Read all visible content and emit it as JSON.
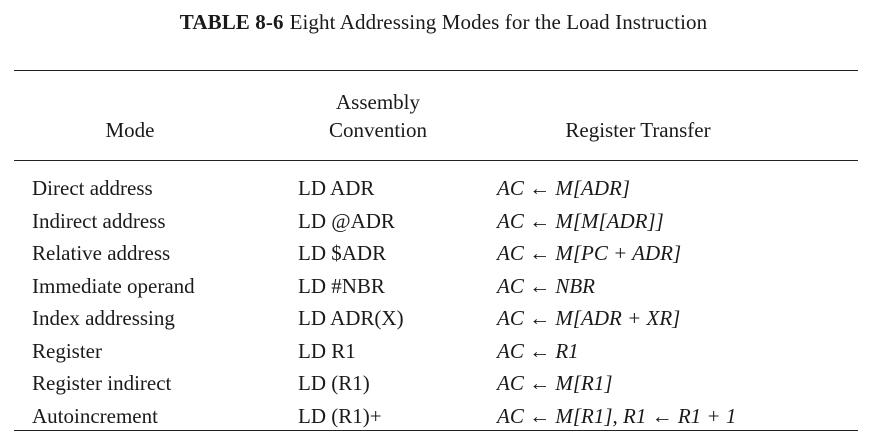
{
  "caption": {
    "table_number": "TABLE 8-6",
    "title": "Eight Addressing Modes for the Load Instruction"
  },
  "headers": {
    "mode": "Mode",
    "convention_line1": "Assembly",
    "convention_line2": "Convention",
    "register_transfer": "Register Transfer"
  },
  "rows": [
    {
      "mode": "Direct address",
      "convention": "LD ADR",
      "transfer": "AC ← M[ADR]"
    },
    {
      "mode": "Indirect address",
      "convention": "LD @ADR",
      "transfer": "AC ← M[M[ADR]]"
    },
    {
      "mode": "Relative address",
      "convention": "LD $ADR",
      "transfer": "AC ← M[PC + ADR]"
    },
    {
      "mode": "Immediate operand",
      "convention": "LD #NBR",
      "transfer": "AC ← NBR"
    },
    {
      "mode": "Index addressing",
      "convention": "LD ADR(X)",
      "transfer": "AC ← M[ADR + XR]"
    },
    {
      "mode": "Register",
      "convention": "LD R1",
      "transfer": "AC ← R1"
    },
    {
      "mode": "Register indirect",
      "convention": "LD (R1)",
      "transfer": "AC ← M[R1]"
    },
    {
      "mode": "Autoincrement",
      "convention": "LD (R1)+",
      "transfer": "AC ← M[R1], R1 ← R1 + 1"
    }
  ]
}
